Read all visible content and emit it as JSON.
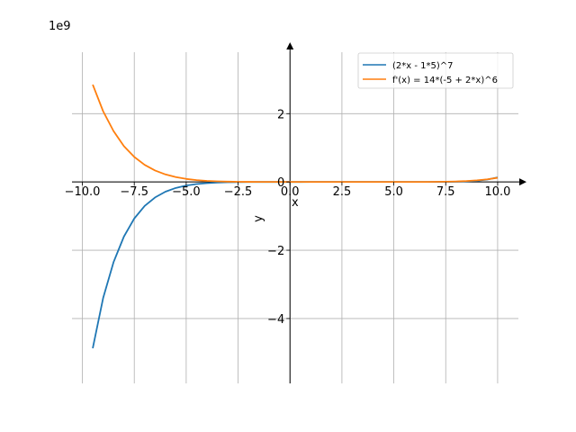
{
  "chart_data": {
    "type": "line",
    "title": "",
    "xlabel": "x",
    "ylabel": "y",
    "y_scale_label": "1e9",
    "xlim": [
      -10.5,
      11.0
    ],
    "ylim": [
      -5.9,
      3.8
    ],
    "x_ticks": [
      -10.0,
      -7.5,
      -5.0,
      -2.5,
      0.0,
      2.5,
      5.0,
      7.5,
      10.0
    ],
    "x_tick_labels": [
      "−10.0",
      "−7.5",
      "−5.0",
      "−2.5",
      "0.0",
      "2.5",
      "5.0",
      "7.5",
      "10.0"
    ],
    "y_ticks": [
      -4,
      -2,
      0,
      2
    ],
    "y_tick_labels": [
      "−4",
      "−2",
      "0",
      "2"
    ],
    "grid": true,
    "legend_position": "top-right",
    "series": [
      {
        "name": "(2*x - 1*5)^7",
        "color": "#1f77b4",
        "x": [
          -9.5,
          -9.0,
          -8.5,
          -8.0,
          -7.5,
          -7.0,
          -6.5,
          -6.0,
          -5.5,
          -5.0,
          -4.5,
          -4.0,
          -3.5,
          -3.0,
          -2.5,
          -2.0,
          -1.5,
          -1.0,
          -0.5,
          0.0,
          0.5,
          1.0,
          1.5,
          2.0,
          2.5,
          3.0,
          3.5,
          4.0,
          4.5,
          5.0,
          5.5,
          6.0,
          6.5,
          7.0,
          7.5,
          8.0,
          8.5,
          9.0,
          9.5,
          10.0
        ],
        "y": [
          -4.87,
          -3.4,
          -2.35,
          -1.6,
          -1.07,
          -0.703,
          -0.454,
          -0.286,
          -0.176,
          -0.105,
          -0.0612,
          -0.0343,
          -0.0184,
          -0.00941,
          -0.00456,
          -0.00206,
          -0.000859,
          -0.000327,
          -0.00011,
          -3.13e-05,
          -7.2e-06,
          -1.2e-06,
          -1e-07,
          0.0,
          0.0,
          0.0,
          0.0,
          1e-07,
          1.2e-06,
          7.8e-06,
          3.5e-05,
          0.000128,
          0.00041,
          0.00117,
          0.00306,
          0.0074,
          0.0167,
          0.0352,
          0.0705,
          0.134
        ]
      },
      {
        "name": "f'(x) = 14*(-5 + 2*x)^6",
        "color": "#ff7f0e",
        "x": [
          -9.5,
          -9.0,
          -8.5,
          -8.0,
          -7.5,
          -7.0,
          -6.5,
          -6.0,
          -5.5,
          -5.0,
          -4.5,
          -4.0,
          -3.5,
          -3.0,
          -2.5,
          -2.0,
          -1.5,
          -1.0,
          -0.5,
          0.0,
          0.5,
          1.0,
          1.5,
          2.0,
          2.5,
          3.0,
          3.5,
          4.0,
          4.5,
          5.0,
          5.5,
          6.0,
          6.5,
          7.0,
          7.5,
          8.0,
          8.5,
          9.0,
          9.5,
          10.0
        ],
        "y": [
          2.85,
          2.07,
          1.49,
          1.05,
          0.733,
          0.5,
          0.336,
          0.221,
          0.142,
          0.0887,
          0.0538,
          0.0316,
          0.0179,
          0.00979,
          0.00512,
          0.00254,
          0.0012,
          0.000525,
          0.000215,
          8.2e-05,
          2.87e-05,
          9.11e-06,
          2.56e-06,
          6.2e-07,
          1.2e-07,
          0.0,
          1e-08,
          6.2e-07,
          9.11e-06,
          5.47e-05,
          0.000215,
          0.000653,
          0.00168,
          0.00383,
          0.00792,
          0.0152,
          0.0274,
          0.0471,
          0.0774,
          0.121
        ]
      }
    ]
  }
}
